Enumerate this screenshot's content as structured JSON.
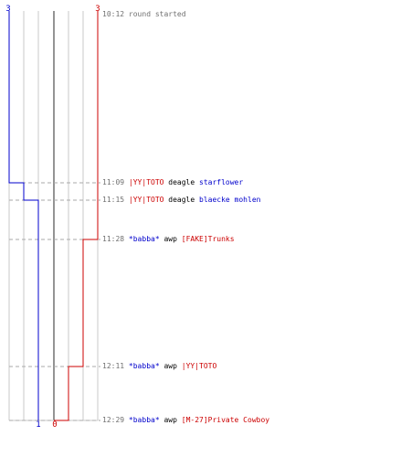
{
  "colors": {
    "blue_team": "#0000cc",
    "red_team": "#cc0000",
    "grid": "#c8c8c8",
    "center_line": "#707070",
    "dashed": "#aaaaaa",
    "time_text": "#707070"
  },
  "teams": {
    "blue": {
      "start_count": "3",
      "end_count": "1"
    },
    "red": {
      "start_count": "3",
      "end_count": "0"
    }
  },
  "round_start": {
    "time": "10:12",
    "text": "round started"
  },
  "events": [
    {
      "time": "11:09",
      "killer": "|YY|TOTO",
      "killer_team": "red",
      "weapon": "deagle",
      "victim": "starflower",
      "victim_team": "blue"
    },
    {
      "time": "11:15",
      "killer": "|YY|TOTO",
      "killer_team": "red",
      "weapon": "deagle",
      "victim": "blaecke mohlen",
      "victim_team": "blue"
    },
    {
      "time": "11:28",
      "killer": "*babba*",
      "killer_team": "blue",
      "weapon": "awp",
      "victim": "[FAKE]Trunks",
      "victim_team": "red"
    },
    {
      "time": "12:11",
      "killer": "*babba*",
      "killer_team": "blue",
      "weapon": "awp",
      "victim": "|YY|TOTO",
      "victim_team": "red"
    },
    {
      "time": "12:29",
      "killer": "*babba*",
      "killer_team": "blue",
      "weapon": "awp",
      "victim": "[M-27]Private Cowboy",
      "victim_team": "red"
    }
  ]
}
